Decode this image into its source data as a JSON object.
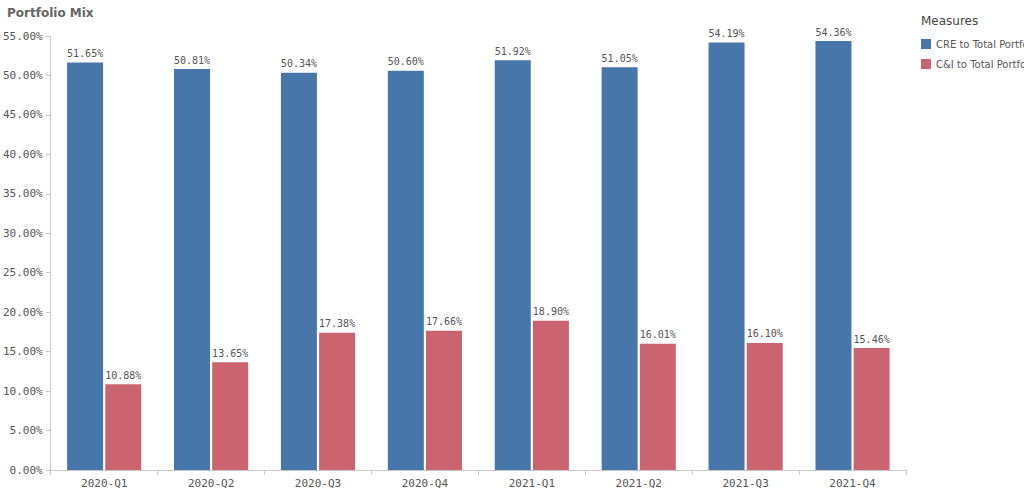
{
  "chart_data": {
    "type": "bar",
    "title": "Portfolio Mix",
    "legend_title": "Measures",
    "categories": [
      "2020-Q1",
      "2020-Q2",
      "2020-Q3",
      "2020-Q4",
      "2021-Q1",
      "2021-Q2",
      "2021-Q3",
      "2021-Q4"
    ],
    "series": [
      {
        "name": "CRE to Total Portfolio",
        "color": "#4777aa",
        "values": [
          51.65,
          50.81,
          50.34,
          50.6,
          51.92,
          51.05,
          54.19,
          54.36
        ],
        "value_labels": [
          "51.65%",
          "50.81%",
          "50.34%",
          "50.60%",
          "51.92%",
          "51.05%",
          "54.19%",
          "54.36%"
        ]
      },
      {
        "name": "C&I to Total Portfolio",
        "color": "#cc6470",
        "values": [
          10.88,
          13.65,
          17.38,
          17.66,
          18.9,
          16.01,
          16.1,
          15.46
        ],
        "value_labels": [
          "10.88%",
          "13.65%",
          "17.38%",
          "17.66%",
          "18.90%",
          "16.01%",
          "16.10%",
          "15.46%"
        ]
      }
    ],
    "ylim": [
      0,
      55
    ],
    "yticks": [
      {
        "value": 0,
        "label": "0.00%"
      },
      {
        "value": 5,
        "label": "5.00%"
      },
      {
        "value": 10,
        "label": "10.00%"
      },
      {
        "value": 15,
        "label": "15.00%"
      },
      {
        "value": 20,
        "label": "20.00%"
      },
      {
        "value": 25,
        "label": "25.00%"
      },
      {
        "value": 30,
        "label": "30.00%"
      },
      {
        "value": 35,
        "label": "35.00%"
      },
      {
        "value": 40,
        "label": "40.00%"
      },
      {
        "value": 45,
        "label": "45.00%"
      },
      {
        "value": 50,
        "label": "50.00%"
      },
      {
        "value": 55,
        "label": "55.00%"
      }
    ],
    "grid": false,
    "legend": "top-right",
    "data_labels": true
  }
}
